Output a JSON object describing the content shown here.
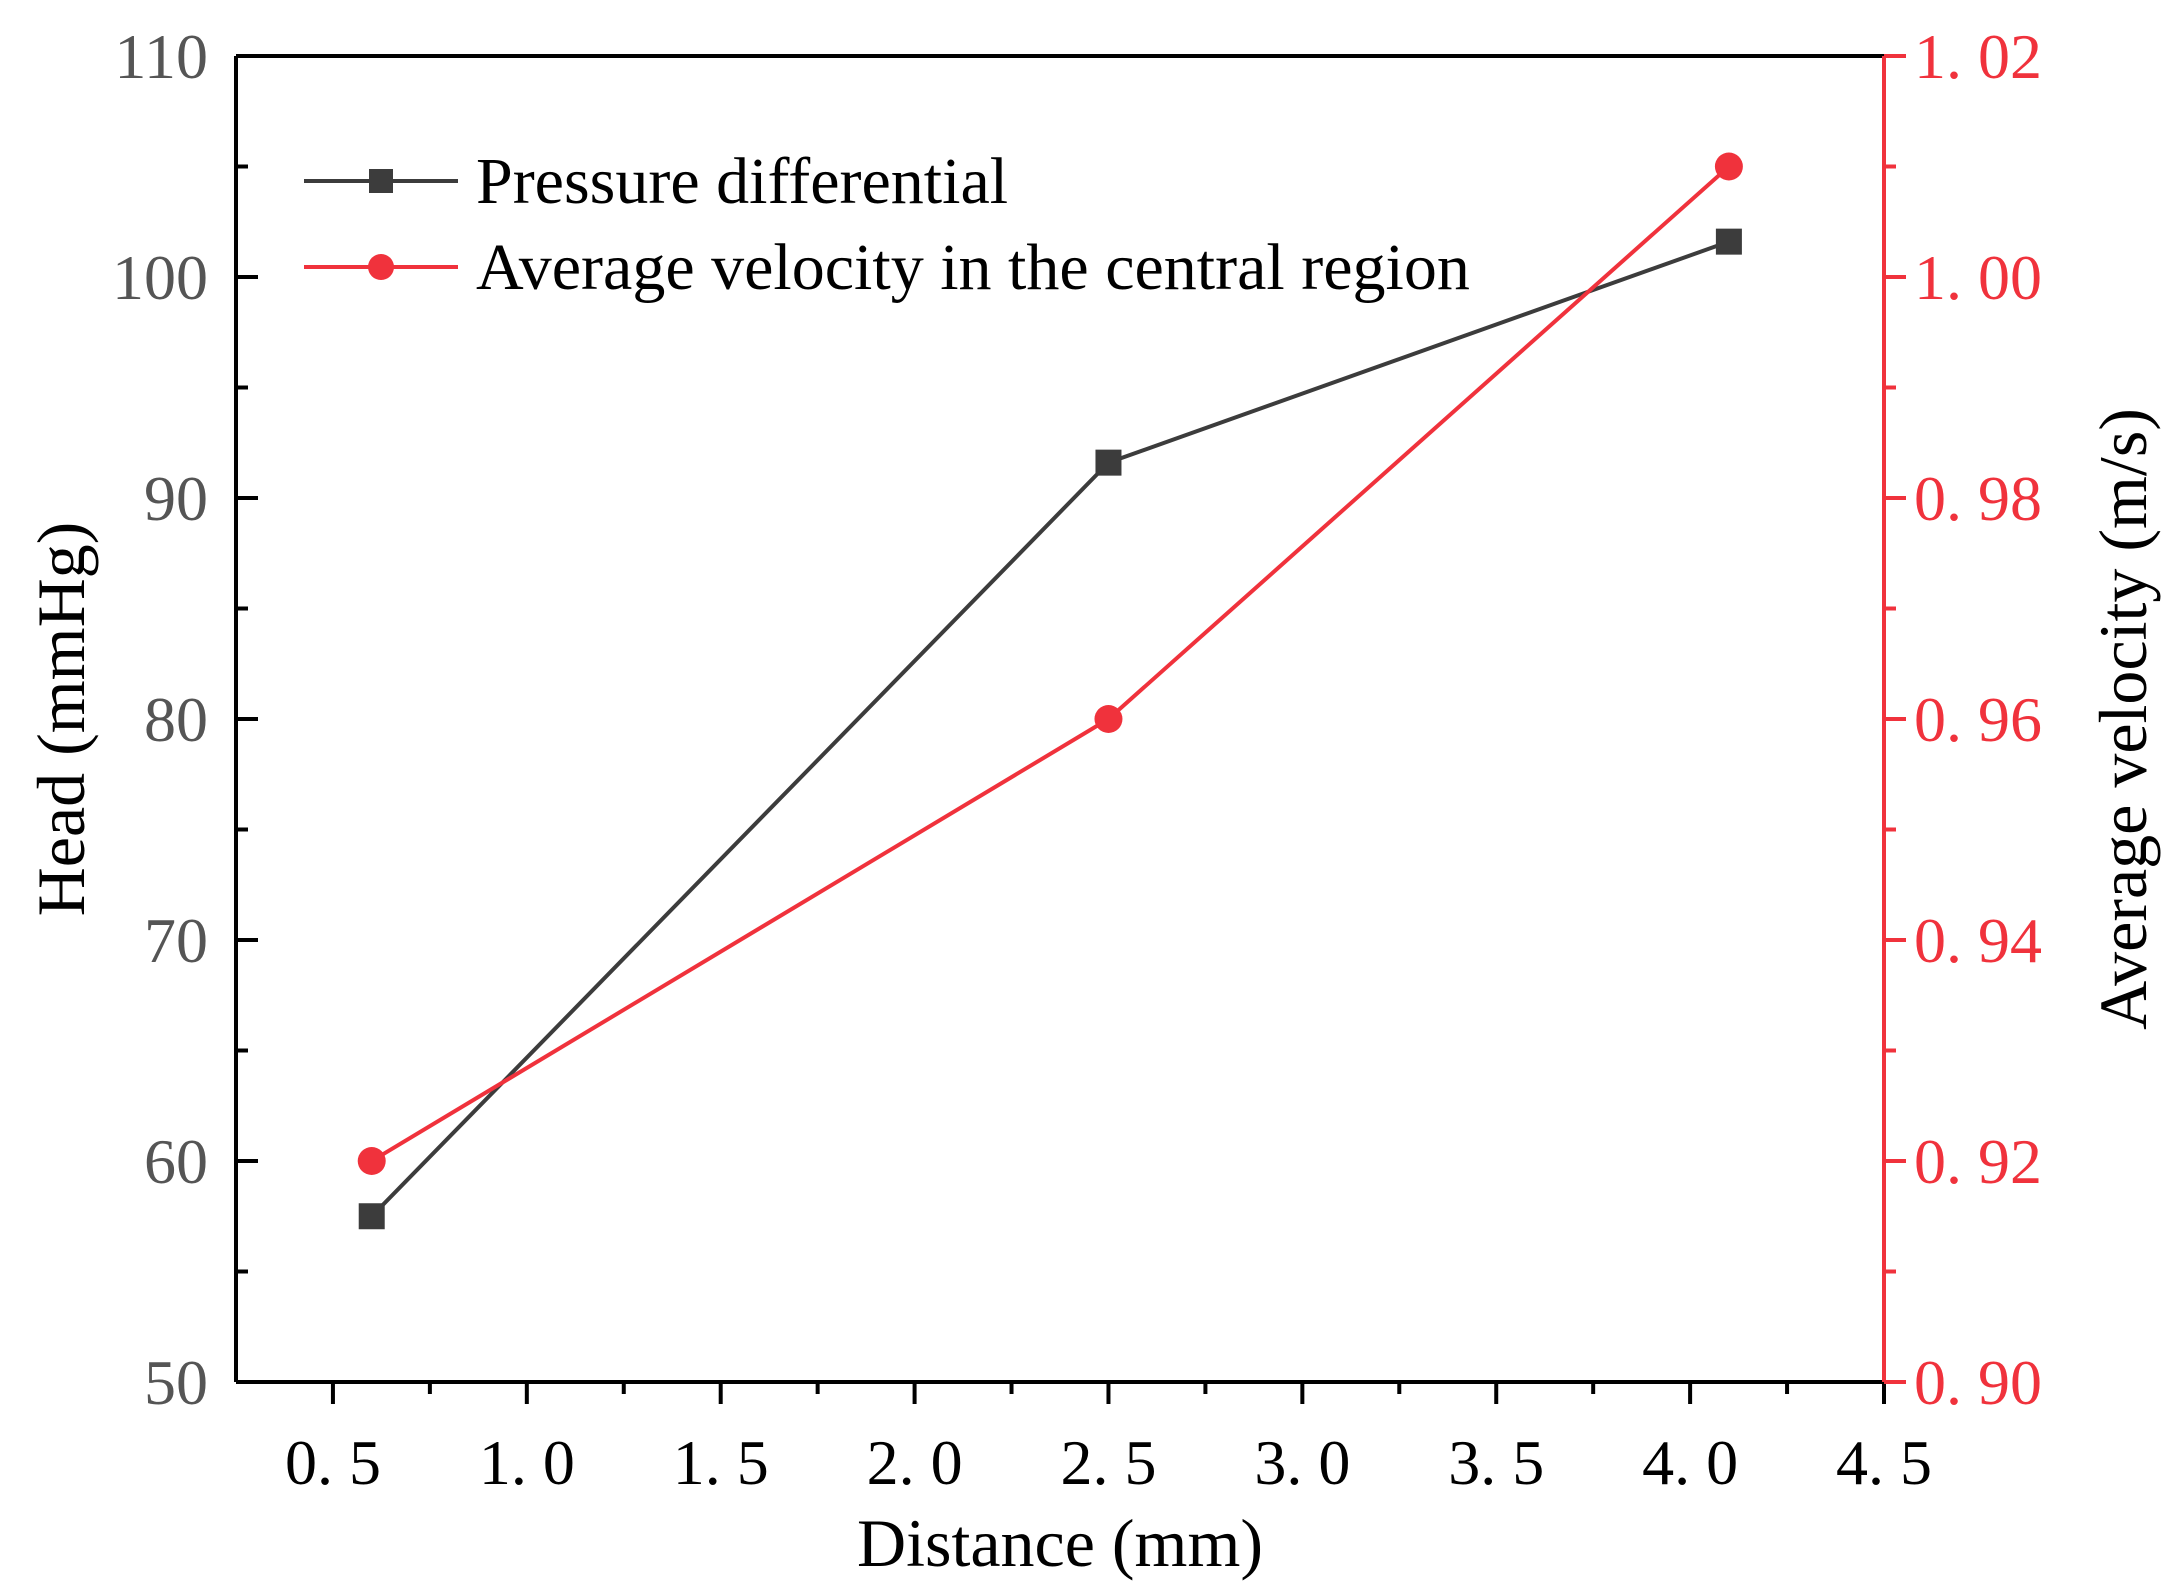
{
  "chart_data": {
    "type": "line",
    "x_axis": {
      "label": "Distance (mm)",
      "range": [
        0.25,
        4.5
      ],
      "major_ticks": [
        0.5,
        1.0,
        1.5,
        2.0,
        2.5,
        3.0,
        3.5,
        4.0,
        4.5
      ],
      "tick_labels": [
        "0. 5",
        "1. 0",
        "1. 5",
        "2. 0",
        "2. 5",
        "3. 0",
        "3. 5",
        "4. 0",
        "4. 5"
      ],
      "minor_ticks": [
        0.75,
        1.25,
        1.75,
        2.25,
        2.75,
        3.25,
        3.75,
        4.25
      ]
    },
    "y_axis_left": {
      "label": "Head (mmHg)",
      "range": [
        50,
        110
      ],
      "major_ticks": [
        50,
        60,
        70,
        80,
        90,
        100,
        110
      ],
      "tick_labels": [
        "50",
        "60",
        "70",
        "80",
        "90",
        "100",
        "110"
      ],
      "minor_ticks": [
        55,
        65,
        75,
        85,
        95,
        105
      ],
      "color": "#000000"
    },
    "y_axis_right": {
      "label": "Average velocity (m/s)",
      "range": [
        0.9,
        1.02
      ],
      "major_ticks": [
        0.9,
        0.92,
        0.94,
        0.96,
        0.98,
        1.0,
        1.02
      ],
      "tick_labels": [
        "0. 90",
        "0. 92",
        "0. 94",
        "0. 96",
        "0. 98",
        "1. 00",
        "1. 02"
      ],
      "minor_ticks": [
        0.91,
        0.93,
        0.95,
        0.97,
        0.99,
        1.01
      ],
      "color": "#f0323c"
    },
    "series": [
      {
        "name": "Pressure differential",
        "axis": "left",
        "marker": "square",
        "color": "#3c3c3c",
        "x": [
          0.6,
          2.5,
          4.1
        ],
        "y": [
          57.5,
          91.6,
          101.6
        ]
      },
      {
        "name": "Average velocity in the central region",
        "axis": "right",
        "marker": "circle",
        "color": "#f0323c",
        "x": [
          0.6,
          2.5,
          4.1
        ],
        "y": [
          0.92,
          0.96,
          1.01
        ]
      }
    ],
    "legend": {
      "position": "top-left"
    },
    "grid": false
  }
}
